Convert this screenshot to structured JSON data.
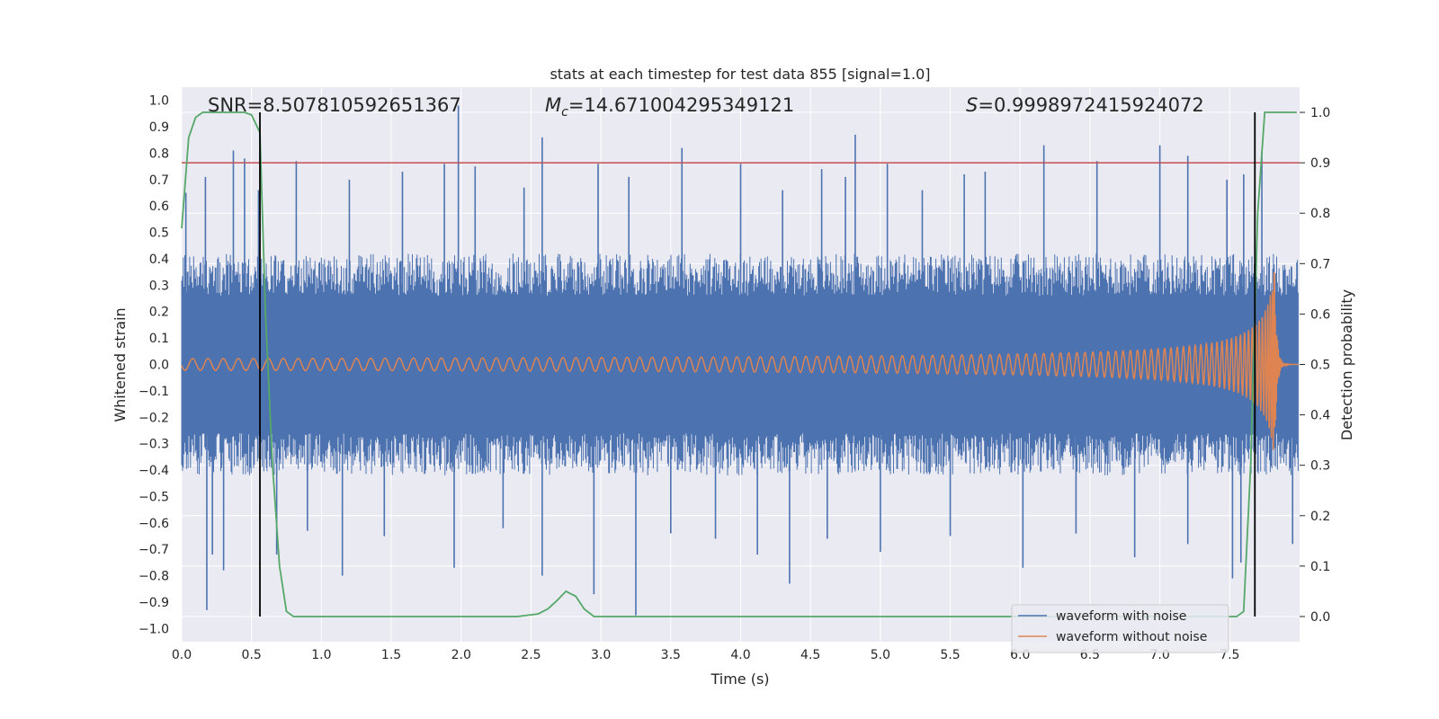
{
  "chart_data": {
    "type": "line",
    "title": "stats at each timestep for test data 855 [signal=1.0]",
    "xlabel": "Time (s)",
    "ylabel": "Whitened strain",
    "y2label": "Detection probability",
    "xlim": [
      0.0,
      8.0
    ],
    "ylim": [
      -1.05,
      1.05
    ],
    "y2lim": [
      -0.05,
      1.05
    ],
    "xticks": [
      "0.0",
      "0.5",
      "1.0",
      "1.5",
      "2.0",
      "2.5",
      "3.0",
      "3.5",
      "4.0",
      "4.5",
      "5.0",
      "5.5",
      "6.0",
      "6.5",
      "7.0",
      "7.5"
    ],
    "yticks": [
      "1.0",
      "0.9",
      "0.8",
      "0.7",
      "0.6",
      "0.5",
      "0.4",
      "0.3",
      "0.2",
      "0.1",
      "0.0",
      "-0.1",
      "-0.2",
      "-0.3",
      "-0.4",
      "-0.5",
      "-0.6",
      "-0.7",
      "-0.8",
      "-0.9",
      "-1.0"
    ],
    "y2ticks": [
      "1.0",
      "0.9",
      "0.8",
      "0.7",
      "0.6",
      "0.5",
      "0.4",
      "0.3",
      "0.2",
      "0.1",
      "0.0"
    ],
    "annotations": {
      "snr": "SNR=8.507810592651367",
      "mc_symbol": "M",
      "mc_sub": "c",
      "mc_value": "=14.671004295349121",
      "s_symbol": "S",
      "s_value": "=0.9998972415924072"
    },
    "threshold": {
      "axis": "y2",
      "value": 0.9,
      "color": "#c44e52"
    },
    "vlines": [
      0.56,
      7.68
    ],
    "series": [
      {
        "name": "waveform with noise",
        "color": "#4c72b0",
        "axis": "y",
        "band_envelope": 0.42,
        "spikes_up": [
          [
            0.03,
            0.65
          ],
          [
            0.17,
            0.71
          ],
          [
            0.37,
            0.81
          ],
          [
            0.45,
            0.78
          ],
          [
            0.55,
            0.66
          ],
          [
            0.82,
            0.77
          ],
          [
            1.2,
            0.7
          ],
          [
            1.58,
            0.73
          ],
          [
            1.88,
            0.76
          ],
          [
            1.98,
            0.98
          ],
          [
            2.1,
            0.75
          ],
          [
            2.45,
            0.67
          ],
          [
            2.58,
            0.86
          ],
          [
            2.98,
            0.76
          ],
          [
            3.2,
            0.71
          ],
          [
            3.58,
            0.82
          ],
          [
            4.0,
            0.76
          ],
          [
            4.3,
            0.66
          ],
          [
            4.58,
            0.74
          ],
          [
            4.75,
            0.71
          ],
          [
            4.82,
            0.87
          ],
          [
            5.05,
            0.76
          ],
          [
            5.3,
            0.66
          ],
          [
            5.6,
            0.72
          ],
          [
            5.75,
            0.73
          ],
          [
            6.17,
            0.83
          ],
          [
            6.55,
            0.77
          ],
          [
            7.0,
            0.83
          ],
          [
            7.2,
            0.79
          ],
          [
            7.48,
            0.7
          ],
          [
            7.6,
            0.72
          ],
          [
            7.73,
            0.81
          ]
        ],
        "spikes_down": [
          [
            0.18,
            -0.93
          ],
          [
            0.22,
            -0.72
          ],
          [
            0.3,
            -0.78
          ],
          [
            0.68,
            -0.72
          ],
          [
            0.9,
            -0.63
          ],
          [
            1.15,
            -0.8
          ],
          [
            1.45,
            -0.65
          ],
          [
            1.95,
            -0.77
          ],
          [
            2.3,
            -0.62
          ],
          [
            2.58,
            -0.8
          ],
          [
            2.95,
            -0.87
          ],
          [
            3.25,
            -0.95
          ],
          [
            3.5,
            -0.64
          ],
          [
            3.82,
            -0.66
          ],
          [
            4.12,
            -0.72
          ],
          [
            4.35,
            -0.83
          ],
          [
            4.62,
            -0.66
          ],
          [
            5.0,
            -0.71
          ],
          [
            5.5,
            -0.65
          ],
          [
            6.02,
            -0.77
          ],
          [
            6.4,
            -0.64
          ],
          [
            6.82,
            -0.73
          ],
          [
            7.2,
            -0.68
          ],
          [
            7.52,
            -0.81
          ],
          [
            7.58,
            -0.75
          ],
          [
            7.95,
            -0.68
          ]
        ]
      },
      {
        "name": "waveform without noise",
        "color": "#dd8452",
        "axis": "y",
        "chirp_start": 0.0,
        "chirp_merger": 7.82,
        "peak_amplitude": 0.35
      },
      {
        "name": "detection probability",
        "color": "#55a868",
        "axis": "y2",
        "x": [
          0.0,
          0.05,
          0.1,
          0.15,
          0.3,
          0.45,
          0.5,
          0.56,
          0.6,
          0.65,
          0.7,
          0.75,
          0.8,
          1.0,
          1.5,
          2.0,
          2.2,
          2.4,
          2.55,
          2.62,
          2.68,
          2.75,
          2.82,
          2.88,
          2.95,
          3.0,
          3.5,
          4.0,
          5.0,
          6.0,
          7.0,
          7.55,
          7.6,
          7.65,
          7.7,
          7.75,
          7.98
        ],
        "values": [
          0.77,
          0.95,
          0.99,
          1.0,
          1.0,
          1.0,
          0.995,
          0.96,
          0.6,
          0.3,
          0.1,
          0.01,
          0.0,
          0.0,
          0.0,
          0.0,
          0.0,
          0.0,
          0.005,
          0.015,
          0.03,
          0.05,
          0.04,
          0.015,
          0.0,
          0.0,
          0.0,
          0.0,
          0.0,
          0.0,
          0.0,
          0.0,
          0.01,
          0.3,
          0.8,
          1.0,
          1.0
        ]
      }
    ],
    "legend": {
      "position": "lower-right",
      "items": [
        {
          "label": "waveform with noise",
          "color": "#4c72b0"
        },
        {
          "label": "waveform without noise",
          "color": "#dd8452"
        }
      ]
    }
  }
}
